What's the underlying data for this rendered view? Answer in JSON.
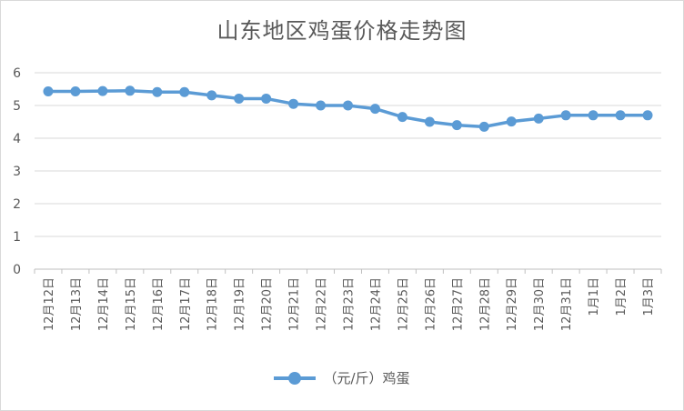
{
  "chart_data": {
    "type": "line",
    "title": "山东地区鸡蛋价格走势图",
    "categories": [
      "12月12日",
      "12月13日",
      "12月14日",
      "12月15日",
      "12月16日",
      "12月17日",
      "12月18日",
      "12月19日",
      "12月20日",
      "12月21日",
      "12月22日",
      "12月23日",
      "12月24日",
      "12月25日",
      "12月26日",
      "12月27日",
      "12月28日",
      "12月29日",
      "12月30日",
      "12月31日",
      "1月1日",
      "1月2日",
      "1月3日"
    ],
    "series": [
      {
        "name": "（元/斤）鸡蛋",
        "values": [
          5.43,
          5.43,
          5.44,
          5.45,
          5.41,
          5.41,
          5.31,
          5.21,
          5.21,
          5.05,
          5.0,
          5.0,
          4.9,
          4.65,
          4.5,
          4.4,
          4.35,
          4.51,
          4.6,
          4.7,
          4.7,
          4.7,
          4.7
        ],
        "color": "#5b9bd5"
      }
    ],
    "ylim": [
      0,
      6
    ],
    "yticks": [
      "0",
      "1",
      "2",
      "3",
      "4",
      "5",
      "6"
    ],
    "xlabel": "",
    "ylabel": "",
    "grid": true,
    "legend": "bottom"
  }
}
